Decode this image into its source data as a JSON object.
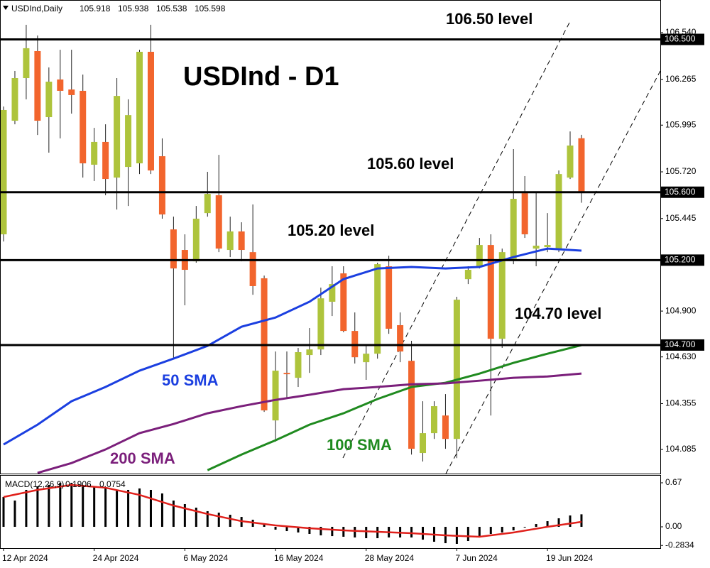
{
  "chart_data": [
    {
      "type": "candlestick",
      "title": "USDInd - D1",
      "symbol": "USDInd,Daily",
      "categories": [
        "12 Apr 2024",
        null,
        null,
        null,
        null,
        null,
        null,
        null,
        "24 Apr 2024",
        null,
        null,
        null,
        null,
        null,
        null,
        null,
        "6 May 2024",
        null,
        null,
        null,
        null,
        null,
        null,
        null,
        "16 May 2024",
        null,
        null,
        null,
        null,
        null,
        null,
        null,
        "28 May 2024",
        null,
        null,
        null,
        null,
        null,
        null,
        null,
        "7 Jun 2024",
        null,
        null,
        null,
        null,
        null,
        null,
        null,
        "19 Jun 2024",
        null,
        null,
        null
      ],
      "up_color": "#aec43c",
      "down_color": "#f2652d",
      "open": [
        105.352,
        106.021,
        106.272,
        106.431,
        106.042,
        106.264,
        106.205,
        106.197,
        105.762,
        105.896,
        105.686,
        105.749,
        105.77,
        106.427,
        105.812,
        105.381,
        105.26,
        105.193,
        105.477,
        105.582,
        105.26,
        105.369,
        105.247,
        105.093,
        104.256,
        104.536,
        104.507,
        104.641,
        104.674,
        104.955,
        105.122,
        104.783,
        104.599,
        104.649,
        105.164,
        104.817,
        104.607,
        104.064,
        104.181,
        104.285,
        104.147,
        105.088,
        105.164,
        105.289,
        104.737,
        105.206,
        105.594,
        105.268,
        105.277,
        105.268,
        105.686,
        105.918
      ],
      "high": [
        106.105,
        106.314,
        106.586,
        106.523,
        106.335,
        106.439,
        106.439,
        106.293,
        105.979,
        106.0,
        106.272,
        106.147,
        106.439,
        106.586,
        105.917,
        105.456,
        105.352,
        105.519,
        105.72,
        105.82,
        105.456,
        105.423,
        105.528,
        105.109,
        104.662,
        104.662,
        104.683,
        104.8,
        105.038,
        105.164,
        105.164,
        104.892,
        104.704,
        105.185,
        105.226,
        104.892,
        104.725,
        104.369,
        104.369,
        104.411,
        104.984,
        105.164,
        105.331,
        105.352,
        105.268,
        105.854,
        105.695,
        105.603,
        105.477,
        105.728,
        105.958,
        105.938
      ],
      "low": [
        105.31,
        106.0,
        106.147,
        105.937,
        105.833,
        105.917,
        106.063,
        105.686,
        105.666,
        105.582,
        105.498,
        105.519,
        105.707,
        105.707,
        105.444,
        104.62,
        104.934,
        105.185,
        105.456,
        105.247,
        105.218,
        105.193,
        104.996,
        104.306,
        104.131,
        104.39,
        104.453,
        104.536,
        104.641,
        104.871,
        104.775,
        104.591,
        104.495,
        104.62,
        104.766,
        104.599,
        104.055,
        104.014,
        104.147,
        104.089,
        104.034,
        105.059,
        105.151,
        104.285,
        104.683,
        105.176,
        105.331,
        105.164,
        105.247,
        105.247,
        105.678,
        105.538
      ],
      "close": [
        106.084,
        106.272,
        106.448,
        106.021,
        106.251,
        106.197,
        106.172,
        105.77,
        105.896,
        105.678,
        106.167,
        106.054,
        106.427,
        105.728,
        105.469,
        105.151,
        105.143,
        105.444,
        105.59,
        105.268,
        105.369,
        105.26,
        105.047,
        104.315,
        104.549,
        104.528,
        104.658,
        104.674,
        104.975,
        105.059,
        104.783,
        104.628,
        104.649,
        105.176,
        104.796,
        104.662,
        104.089,
        104.181,
        104.34,
        104.147,
        104.967,
        105.143,
        105.289,
        104.737,
        105.247,
        105.561,
        105.352,
        105.285,
        105.289,
        105.707,
        105.875,
        105.598
      ],
      "series": [
        {
          "name": "50 SMA",
          "color": "#1b3fe0",
          "x": [
            0,
            3,
            6,
            9,
            12,
            15,
            18,
            21,
            24,
            27,
            30,
            33,
            36,
            39,
            42,
            45,
            48,
            51
          ],
          "values": [
            104.114,
            104.231,
            104.369,
            104.453,
            104.549,
            104.62,
            104.695,
            104.808,
            104.862,
            104.955,
            105.088,
            105.151,
            105.16,
            105.151,
            105.16,
            105.218,
            105.268,
            105.256
          ]
        },
        {
          "name": "100 SMA",
          "color": "#1f8a1f",
          "x": [
            18,
            21,
            24,
            27,
            30,
            33,
            36,
            39,
            42,
            45,
            48,
            51
          ],
          "values": [
            103.963,
            104.055,
            104.139,
            104.231,
            104.298,
            104.382,
            104.453,
            104.478,
            104.532,
            104.595,
            104.649,
            104.699
          ]
        },
        {
          "name": "200 SMA",
          "color": "#7b1f7b",
          "x": [
            3,
            6,
            9,
            12,
            15,
            18,
            21,
            24,
            27,
            30,
            33,
            36,
            39,
            42,
            45,
            48,
            51
          ],
          "values": [
            103.947,
            104.005,
            104.085,
            104.181,
            104.235,
            104.298,
            104.34,
            104.377,
            104.407,
            104.44,
            104.453,
            104.469,
            104.474,
            104.49,
            104.507,
            104.515,
            104.532
          ]
        }
      ],
      "levels": [
        {
          "value": 106.5,
          "label": "106.500",
          "note": "106.50 level"
        },
        {
          "value": 105.6,
          "label": "105.600",
          "note": "105.60 level"
        },
        {
          "value": 105.2,
          "label": "105.200",
          "note": "105.20 level"
        },
        {
          "value": 104.7,
          "label": "104.700",
          "note": "104.70 level"
        }
      ],
      "ylim": [
        103.943,
        106.732
      ],
      "yticks": [
        {
          "value": 106.54,
          "label": "106.540"
        },
        {
          "value": 106.265,
          "label": "106.265"
        },
        {
          "value": 105.995,
          "label": "105.995"
        },
        {
          "value": 105.72,
          "label": "105.720"
        },
        {
          "value": 105.445,
          "label": "105.445"
        },
        {
          "value": 104.9,
          "label": "104.900"
        },
        {
          "value": 104.63,
          "label": "104.630"
        },
        {
          "value": 104.355,
          "label": "104.355"
        },
        {
          "value": 104.085,
          "label": "104.085"
        }
      ]
    },
    {
      "type": "macd",
      "title": "MACD(12,26,9)",
      "histogram": {
        "color": "#000000",
        "values": [
          0.454,
          0.4,
          0.562,
          0.616,
          0.638,
          0.67,
          0.67,
          0.638,
          0.616,
          0.584,
          0.562,
          0.562,
          0.584,
          0.562,
          0.508,
          0.4,
          0.346,
          0.292,
          0.238,
          0.216,
          0.184,
          0.151,
          0.108,
          0.043,
          -0.043,
          -0.065,
          -0.086,
          -0.108,
          -0.13,
          -0.141,
          -0.151,
          -0.162,
          -0.173,
          -0.173,
          -0.162,
          -0.162,
          -0.162,
          -0.195,
          -0.227,
          -0.249,
          -0.259,
          -0.216,
          -0.151,
          -0.108,
          -0.086,
          -0.054,
          -0.011,
          0.043,
          0.086,
          0.13,
          0.173,
          0.1906
        ]
      },
      "signal": {
        "color": "#e0201b",
        "x": [
          0,
          3,
          6,
          9,
          12,
          15,
          18,
          21,
          24,
          27,
          30,
          33,
          36,
          39,
          42,
          45,
          48,
          51
        ],
        "values": [
          0.454,
          0.562,
          0.638,
          0.595,
          0.486,
          0.324,
          0.195,
          0.086,
          0.022,
          -0.022,
          -0.054,
          -0.076,
          -0.097,
          -0.13,
          -0.151,
          -0.086,
          0,
          0.0754
        ]
      },
      "ylim": [
        -0.324,
        0.778
      ],
      "yticks": [
        0.67,
        {
          "value": 0,
          "label": "0.00"
        },
        -0.2834
      ]
    }
  ]
}
